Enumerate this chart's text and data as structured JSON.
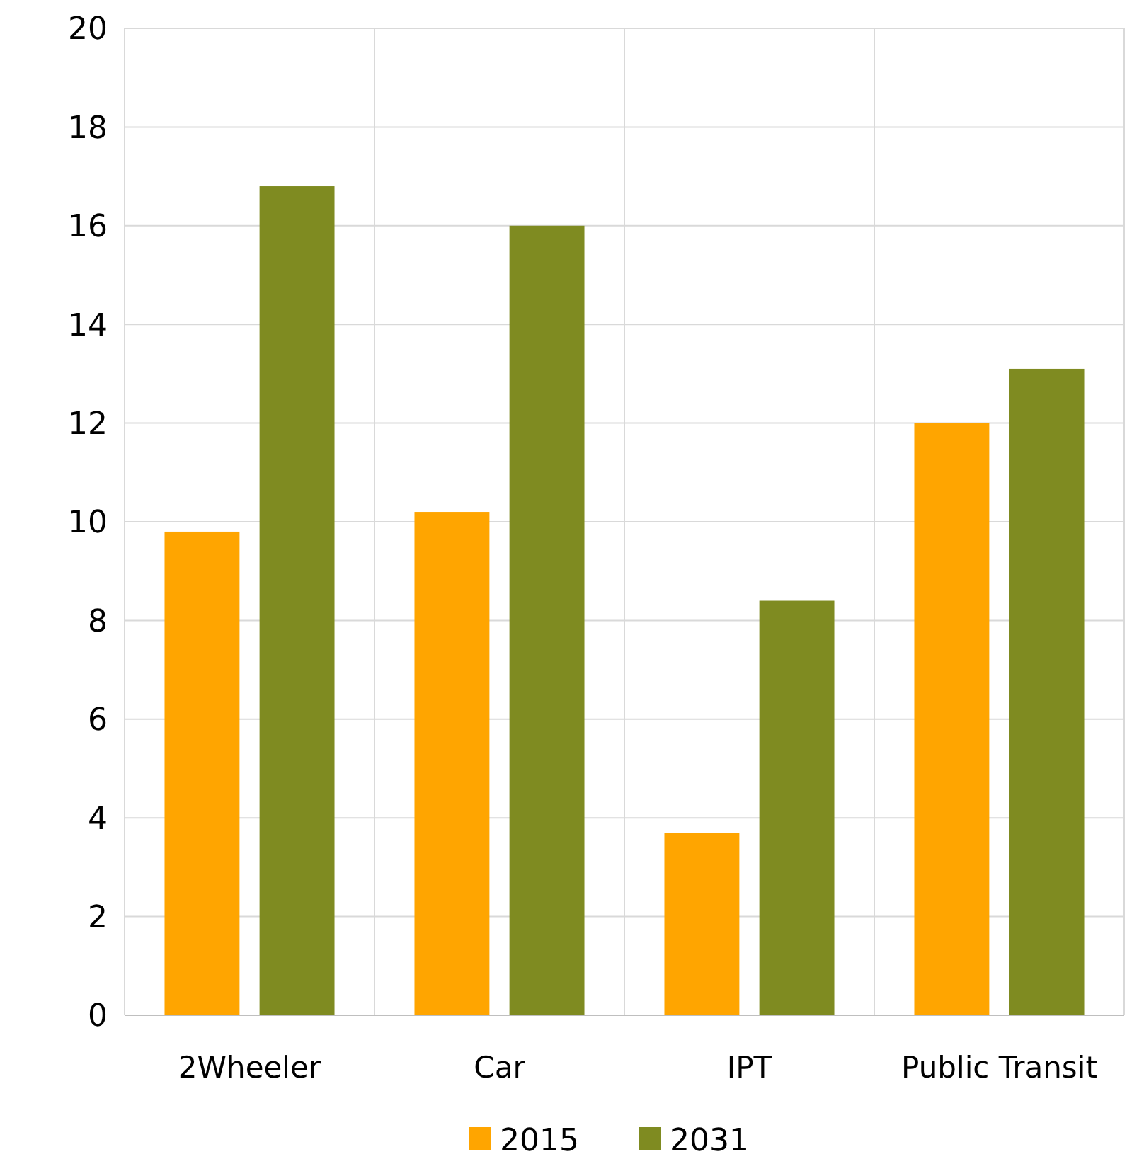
{
  "chart_data": {
    "type": "bar",
    "categories": [
      "2Wheeler",
      "Car",
      "IPT",
      "Public Transit"
    ],
    "series": [
      {
        "name": "2015",
        "color": "#ffa500",
        "values": [
          9.8,
          10.2,
          3.7,
          12.0
        ]
      },
      {
        "name": "2031",
        "color": "#7f8b21",
        "values": [
          16.8,
          16.0,
          8.4,
          13.1
        ]
      }
    ],
    "ylim": [
      0,
      20
    ],
    "yticks": [
      0,
      2,
      4,
      6,
      8,
      10,
      12,
      14,
      16,
      18,
      20
    ],
    "grid": true,
    "legend": "bottom"
  }
}
